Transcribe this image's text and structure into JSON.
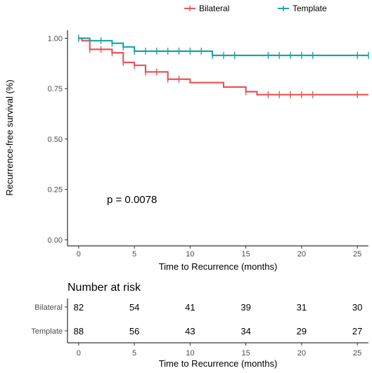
{
  "chart_data": {
    "type": "line",
    "subtype": "kaplan-meier",
    "title": "",
    "xlabel": "Time to Recurrence (months)",
    "ylabel": "Recurrence-free survival (%)",
    "xlim": [
      -1,
      26
    ],
    "ylim": [
      -0.03,
      1.04
    ],
    "x_ticks": [
      0,
      5,
      10,
      15,
      20,
      25
    ],
    "y_ticks": [
      0.0,
      0.25,
      0.5,
      0.75,
      1.0
    ],
    "y_tick_labels": [
      "0.00",
      "0.25",
      "0.50",
      "0.75",
      "1.00"
    ],
    "grid": false,
    "legend_position": "top",
    "annotation": "p = 0.0078",
    "series": [
      {
        "name": "Bilateral",
        "color": "#e8555a",
        "steps": [
          [
            0,
            1.0
          ],
          [
            0.3,
            0.988
          ],
          [
            1,
            0.945
          ],
          [
            3,
            0.928
          ],
          [
            4,
            0.88
          ],
          [
            5,
            0.866
          ],
          [
            6,
            0.833
          ],
          [
            8,
            0.797
          ],
          [
            10,
            0.78
          ],
          [
            13,
            0.758
          ],
          [
            15,
            0.735
          ],
          [
            16,
            0.72
          ],
          [
            26,
            0.72
          ]
        ],
        "censor_times": [
          0,
          1,
          2,
          3,
          4,
          5,
          6,
          7,
          8,
          9,
          15,
          17,
          18,
          19,
          20,
          21,
          25
        ]
      },
      {
        "name": "Template",
        "color": "#1aa5a8",
        "steps": [
          [
            0,
            1.0
          ],
          [
            1,
            0.988
          ],
          [
            3,
            0.975
          ],
          [
            4,
            0.957
          ],
          [
            5,
            0.936
          ],
          [
            12,
            0.915
          ],
          [
            26,
            0.915
          ]
        ],
        "censor_times": [
          0,
          2,
          3,
          4,
          5,
          6,
          7,
          8,
          9,
          10,
          11,
          12,
          13,
          14,
          17,
          18,
          19,
          20,
          21,
          25,
          26
        ]
      }
    ]
  },
  "risk_table": {
    "title": "Number at risk",
    "xlabel": "Time to Recurrence (months)",
    "times": [
      0,
      5,
      10,
      15,
      20,
      25
    ],
    "rows": [
      {
        "group": "Bilateral",
        "counts": [
          82,
          54,
          41,
          39,
          31,
          30
        ]
      },
      {
        "group": "Template",
        "counts": [
          88,
          56,
          43,
          34,
          29,
          27
        ]
      }
    ]
  }
}
